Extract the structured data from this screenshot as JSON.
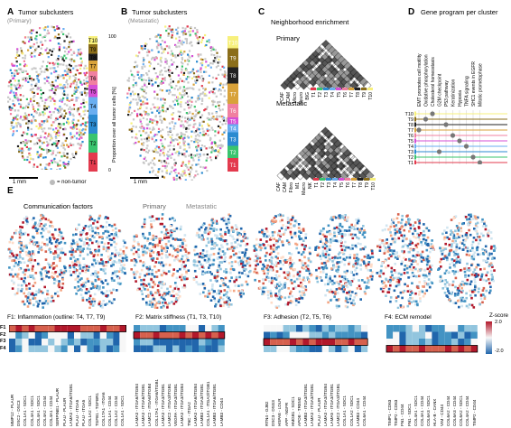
{
  "panels": {
    "A": {
      "letter": "A",
      "title": "Tumor subclusters",
      "subtitle": "(Primary)",
      "scale": "1 mm",
      "legend_note": "= non-tumor"
    },
    "B": {
      "letter": "B",
      "title": "Tumor subclusters",
      "subtitle": "(Metastatic)",
      "scale": "1 mm"
    },
    "C": {
      "letter": "C",
      "title": "Neighborhood enrichment",
      "primary": "Primary",
      "metastatic": "Metastatic"
    },
    "D": {
      "letter": "D",
      "title": "Gene program per cluster"
    },
    "E": {
      "letter": "E",
      "title": "Communication factors",
      "primary": "Primary",
      "metastatic": "Metastatic"
    }
  },
  "stack_axis": {
    "label": "Proportion over all tumor cells [%]",
    "top": "100",
    "bottom": "0"
  },
  "cluster_labels": [
    "T10",
    "T9",
    "T8",
    "T7",
    "T6",
    "T5",
    "T4",
    "T3",
    "T2",
    "T1"
  ],
  "cluster_colors": [
    "#f7f07c",
    "#8b6e1a",
    "#202020",
    "#d8a23a",
    "#f080a0",
    "#d54fd6",
    "#6aaef0",
    "#2a8ad0",
    "#39c46e",
    "#e33a4d"
  ],
  "stack_A": [
    6,
    7,
    5,
    8,
    10,
    9,
    13,
    14,
    14,
    14
  ],
  "stack_B": [
    9,
    14,
    12,
    15,
    10,
    5,
    6,
    10,
    9,
    10
  ],
  "neigh_labels_primary": [
    "CAF",
    "CAM",
    "Micro",
    "Neuro",
    "BIG",
    "T1",
    "T2",
    "T3",
    "T4",
    "T5",
    "T6",
    "T7",
    "T8",
    "T9",
    "T10"
  ],
  "neigh_labels_meta": [
    "CAF",
    "CAM",
    "Fibro",
    "M1",
    "Macro",
    "NK",
    "T1",
    "T2",
    "T3",
    "T4",
    "T5",
    "T6",
    "T7",
    "T8",
    "T9",
    "T10"
  ],
  "gene_programs": [
    "EMT promotes cell motility",
    "Oxidative phosphorylation",
    "Cholesterol homeostasis",
    "G2M checkpoint",
    "P53 pathway",
    "Keratinization",
    "Hypoxia",
    "TNFA signaling",
    "SHC1 events in EGFR",
    "Mitotic prometaphase"
  ],
  "dot_matrix": [
    {
      "cluster": "T10",
      "program": 2
    },
    {
      "cluster": "T9",
      "program": 1
    },
    {
      "cluster": "T8",
      "program": 4
    },
    {
      "cluster": "T7",
      "program": 0
    },
    {
      "cluster": "T6",
      "program": 5
    },
    {
      "cluster": "T5",
      "program": 6
    },
    {
      "cluster": "T4",
      "program": 7
    },
    {
      "cluster": "T3",
      "program": 3
    },
    {
      "cluster": "T2",
      "program": 8
    },
    {
      "cluster": "T1",
      "program": 9
    }
  ],
  "factors": [
    {
      "id": "F1",
      "title": "F1: Inflammation (outline: T4, T7, T9)",
      "genes": [
        "MMP12 - PLAUR",
        "DSC2 - DSC3",
        "COL1A1 - SDC1",
        "COL4A1 - SDC1",
        "COL4A1 - SDC1",
        "COL4A2 - CD44",
        "COL4A1 - CD44",
        "SERPINE1 - PLAUR",
        "PLAU - PLAUR",
        "LAMA3 - ITGA6/ITGB1",
        "PLAU - ITGA5",
        "PLAU - ITGA5",
        "COL1A2 - SDC1",
        "TGFB1 - TGFBR1",
        "COL17A1 - ITGA6",
        "COL1A1 - CD44",
        "COL1A2 - CD44",
        "COL1A1 - SDC1"
      ]
    },
    {
      "id": "F2",
      "title": "F2: Matrix stiffness (T1, T3, T10)",
      "genes": [
        "LAMA3 - ITGA6/ITGB4",
        "LAMA3 - ITGA6/ITGB1",
        "LAMC2 - ITGA6/ITGB4",
        "COL17A1 - ITGA6/ITGB1",
        "LAMA3 - ITGA3/ITGB1",
        "LAMC2 - ITGA3/ITGB1",
        "VEGFA - ITGA3/ITGB1",
        "LAMA3 - ITGA3/ITGB4",
        "TNC - ITGA2",
        "LAMA3 - ITGA6/ITGB4",
        "LAMB3 - ITGA3/ITGB1",
        "COL1A1 - ITGA2/ITGB1",
        "LAMB3 - ITGA6/ITGB1",
        "LAMB3 - CD44"
      ]
    },
    {
      "id": "F3",
      "title": "F3: Adhesion (T2, T5, T6)",
      "genes": [
        "RTN4 - GJB2",
        "DSC3 - DSG3",
        "HSPA8 - LDLR",
        "APP - NGFR",
        "HMGB1 - SDC1",
        "APOE - TREM2",
        "LAMB3 - ITGA3/ITGB1",
        "LAMA3 - ITGA3/ITGB1",
        "PLAU - PLAUR",
        "LAMA3 - ITGA3/ITGB4",
        "LAMA5 - ITGA3/ITGB1",
        "LAMC2 - ITGA3/ITGB1",
        "COL1A1 - SDC1",
        "COL1A2 - SDC1",
        "LAMB3 - CD44",
        "COL6A1 - CD44"
      ]
    },
    {
      "id": "F4",
      "title": "F4: ECM remodel",
      "genes": [
        "TIMP1 - CD63",
        "TIMP2 - CD63",
        "FN1 - CD44",
        "FN1 - SDC1",
        "COL4A1 - SDC1",
        "COL4A1 - CD44",
        "COL6A3 - SDC1",
        "HLA-B - CANX",
        "VIM - CD44",
        "COL6A2 - CD44",
        "COL6A3 - CD44",
        "COL6A2 - SDC1",
        "COL4A2 - CD44",
        "TIMP2 - CD44"
      ]
    }
  ],
  "row_labels": [
    "F1",
    "F2",
    "F3",
    "F4"
  ],
  "zscore": {
    "title": "Z-score",
    "max": "2.0",
    "min": "-2.0"
  }
}
